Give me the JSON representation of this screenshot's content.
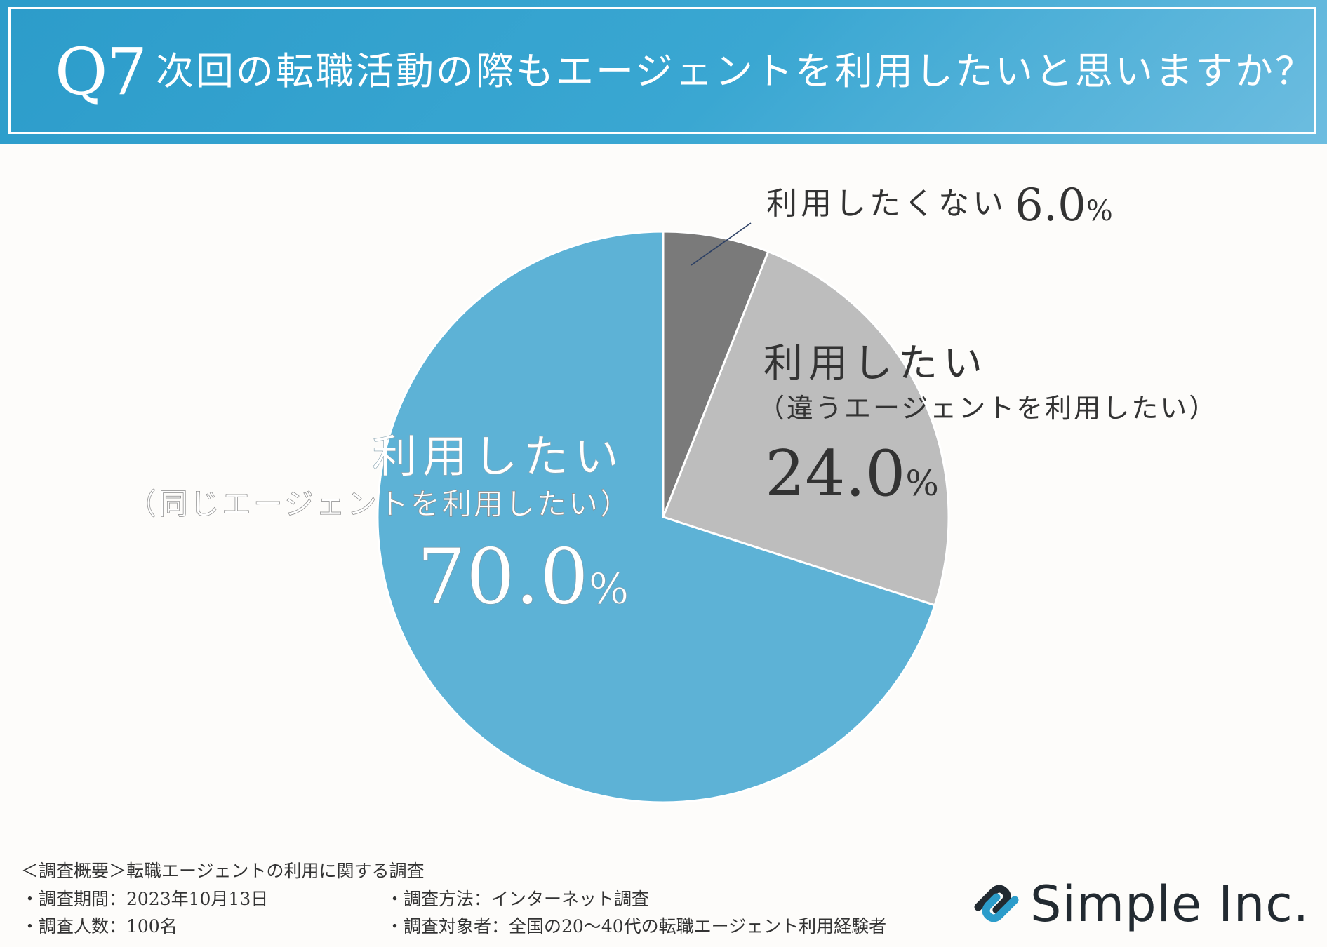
{
  "header": {
    "q_number": "Q7",
    "title": "次回の転職活動の際もエージェントを利用したいと思いますか？",
    "colors": {
      "banner": "#2c9cca",
      "banner_light": "#6dbde0",
      "text": "#ffffff"
    }
  },
  "chart_data": {
    "type": "pie",
    "title": "次回の転職活動の際もエージェントを利用したいと思いますか？",
    "unit": "%",
    "slices": [
      {
        "label": "利用したくない",
        "sublabel": "",
        "value": 6.0,
        "value_text": "6.0",
        "color": "#7a7a7a"
      },
      {
        "label": "利用したい",
        "sublabel": "（違うエージェントを利用したい）",
        "value": 24.0,
        "value_text": "24.0",
        "color": "#bdbdbd"
      },
      {
        "label": "利用したい",
        "sublabel": "（同じエージェントを利用したい）",
        "value": 70.0,
        "value_text": "70.0",
        "color": "#5db2d6"
      }
    ],
    "start_angle": "12 o'clock",
    "direction": "clockwise"
  },
  "survey": {
    "title": "＜調査概要＞転職エージェントの利用に関する調査",
    "period": "・調査期間：2023年10月13日",
    "method": "・調査方法：インターネット調査",
    "count": "・調査人数：100名",
    "target": "・調査対象者：全国の20〜40代の転職エージェント利用経験者"
  },
  "logo": {
    "name": "Simple Inc.",
    "icon": "chain-link-icon",
    "colors": {
      "dark": "#222a31",
      "accent": "#2c9cca"
    }
  }
}
